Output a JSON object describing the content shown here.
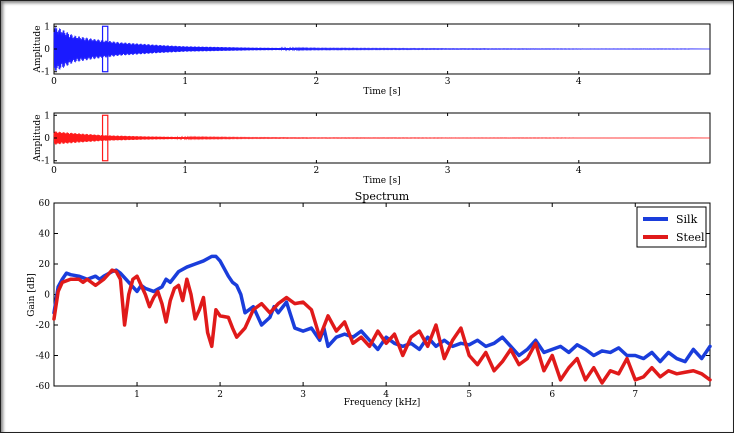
{
  "chart_data": [
    {
      "type": "line",
      "panel": "waveform-top",
      "xlabel": "Time [s]",
      "ylabel": "Amplitude",
      "xlim": [
        0,
        5
      ],
      "ylim": [
        -1.1,
        1.1
      ],
      "xticks": [
        0,
        1,
        2,
        3,
        4
      ],
      "yticks": [
        1,
        0,
        -1
      ],
      "color": "#1a1aff",
      "series": [
        {
          "decay": {
            "x": [
              0,
              0.05,
              0.15,
              0.3,
              0.5,
              0.8,
              1.0,
              1.5,
              2.0,
              3.0,
              4.0,
              5.0
            ],
            "envelope": [
              1.0,
              0.9,
              0.6,
              0.45,
              0.3,
              0.18,
              0.12,
              0.06,
              0.03,
              0.015,
              0.008,
              0.005
            ]
          }
        }
      ],
      "highlight_window": [
        0.37,
        0.41
      ]
    },
    {
      "type": "line",
      "panel": "waveform-bottom",
      "xlabel": "Time [s]",
      "ylabel": "Amplitude",
      "xlim": [
        0,
        5
      ],
      "ylim": [
        -1.1,
        1.1
      ],
      "xticks": [
        0,
        1,
        2,
        3,
        4
      ],
      "yticks": [
        1,
        0,
        -1
      ],
      "color": "#ff1a1a",
      "series": [
        {
          "decay": {
            "x": [
              0,
              0.05,
              0.2,
              0.4,
              0.7,
              1.0,
              1.5,
              2.0,
              3.0,
              4.0,
              5.0
            ],
            "envelope": [
              0.3,
              0.27,
              0.2,
              0.12,
              0.07,
              0.04,
              0.02,
              0.012,
              0.008,
              0.005,
              0.004
            ]
          }
        }
      ],
      "highlight_window": [
        0.37,
        0.41
      ]
    },
    {
      "type": "line",
      "panel": "spectrum",
      "title": "Spectrum",
      "xlabel": "Frequency [kHz]",
      "ylabel": "Gain [dB]",
      "xlim": [
        0,
        7.9
      ],
      "ylim": [
        -60,
        60
      ],
      "xticks": [
        1,
        2,
        3,
        4,
        5,
        6,
        7
      ],
      "yticks": [
        60,
        40,
        20,
        0,
        -20,
        -40,
        -60
      ],
      "legend_position": "top-right",
      "series": [
        {
          "name": "Silk",
          "color": "#1a3ddb",
          "x": [
            0.0,
            0.05,
            0.1,
            0.15,
            0.2,
            0.3,
            0.4,
            0.5,
            0.55,
            0.6,
            0.7,
            0.75,
            0.8,
            0.9,
            1.0,
            1.05,
            1.1,
            1.2,
            1.3,
            1.35,
            1.4,
            1.5,
            1.6,
            1.7,
            1.8,
            1.9,
            1.95,
            2.0,
            2.1,
            2.15,
            2.2,
            2.25,
            2.3,
            2.4,
            2.5,
            2.6,
            2.65,
            2.7,
            2.8,
            2.9,
            3.0,
            3.1,
            3.2,
            3.25,
            3.3,
            3.4,
            3.5,
            3.6,
            3.7,
            3.8,
            3.9,
            4.0,
            4.1,
            4.2,
            4.3,
            4.4,
            4.5,
            4.6,
            4.7,
            4.8,
            4.9,
            5.0,
            5.1,
            5.2,
            5.3,
            5.4,
            5.5,
            5.6,
            5.7,
            5.8,
            5.9,
            6.0,
            6.1,
            6.2,
            6.3,
            6.4,
            6.5,
            6.6,
            6.7,
            6.8,
            6.9,
            7.0,
            7.1,
            7.2,
            7.3,
            7.4,
            7.5,
            7.6,
            7.7,
            7.8,
            7.9
          ],
          "y": [
            -12,
            5,
            10,
            14,
            13,
            12,
            10,
            12,
            10,
            12,
            15,
            16,
            14,
            8,
            2,
            6,
            4,
            2,
            5,
            10,
            8,
            15,
            18,
            20,
            22,
            25,
            25,
            22,
            12,
            8,
            6,
            0,
            -12,
            -8,
            -20,
            -15,
            -8,
            -12,
            -5,
            -22,
            -24,
            -22,
            -30,
            -22,
            -34,
            -28,
            -26,
            -28,
            -24,
            -30,
            -36,
            -28,
            -32,
            -34,
            -32,
            -36,
            -28,
            -34,
            -30,
            -34,
            -32,
            -33,
            -30,
            -34,
            -32,
            -28,
            -34,
            -40,
            -36,
            -30,
            -38,
            -36,
            -34,
            -38,
            -33,
            -36,
            -40,
            -37,
            -38,
            -35,
            -40,
            -40,
            -42,
            -38,
            -44,
            -38,
            -42,
            -44,
            -36,
            -42,
            -34
          ]
        },
        {
          "name": "Steel",
          "color": "#e01a1a",
          "x": [
            0.0,
            0.05,
            0.1,
            0.2,
            0.3,
            0.35,
            0.4,
            0.5,
            0.6,
            0.7,
            0.75,
            0.8,
            0.85,
            0.9,
            0.95,
            1.0,
            1.05,
            1.1,
            1.15,
            1.2,
            1.25,
            1.3,
            1.35,
            1.4,
            1.45,
            1.5,
            1.55,
            1.6,
            1.65,
            1.7,
            1.75,
            1.8,
            1.85,
            1.9,
            1.95,
            2.0,
            2.1,
            2.15,
            2.2,
            2.3,
            2.4,
            2.5,
            2.6,
            2.7,
            2.8,
            2.9,
            3.0,
            3.1,
            3.2,
            3.3,
            3.4,
            3.5,
            3.6,
            3.7,
            3.8,
            3.9,
            4.0,
            4.1,
            4.2,
            4.3,
            4.4,
            4.5,
            4.6,
            4.7,
            4.8,
            4.9,
            5.0,
            5.1,
            5.2,
            5.3,
            5.4,
            5.5,
            5.6,
            5.7,
            5.8,
            5.9,
            6.0,
            6.1,
            6.2,
            6.3,
            6.4,
            6.5,
            6.6,
            6.7,
            6.8,
            6.9,
            7.0,
            7.1,
            7.2,
            7.3,
            7.4,
            7.5,
            7.6,
            7.7,
            7.8,
            7.9
          ],
          "y": [
            -16,
            2,
            8,
            10,
            10,
            8,
            10,
            6,
            10,
            16,
            15,
            10,
            -20,
            0,
            10,
            12,
            6,
            0,
            -8,
            -2,
            2,
            -6,
            -18,
            -4,
            4,
            6,
            -4,
            10,
            0,
            -16,
            -10,
            -2,
            -25,
            -34,
            -10,
            -14,
            -15,
            -22,
            -28,
            -22,
            -10,
            -6,
            -12,
            -6,
            -2,
            -6,
            -5,
            -10,
            -28,
            -14,
            -24,
            -18,
            -32,
            -28,
            -34,
            -24,
            -32,
            -26,
            -40,
            -28,
            -24,
            -34,
            -20,
            -42,
            -30,
            -22,
            -40,
            -46,
            -38,
            -50,
            -44,
            -36,
            -46,
            -42,
            -32,
            -50,
            -40,
            -56,
            -48,
            -42,
            -56,
            -48,
            -58,
            -50,
            -52,
            -42,
            -56,
            -54,
            -48,
            -54,
            -50,
            -52,
            -51,
            -50,
            -52,
            -56
          ]
        }
      ]
    }
  ]
}
